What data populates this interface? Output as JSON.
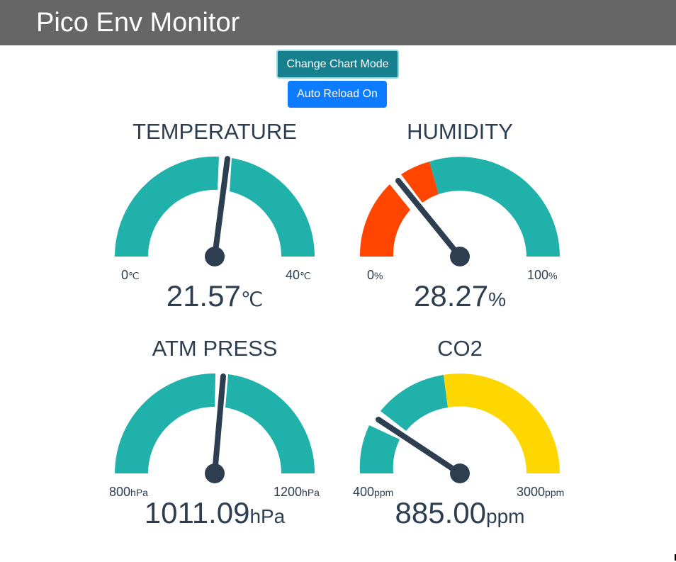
{
  "header": {
    "title": "Pico Env Monitor"
  },
  "buttons": {
    "chart_mode_label": "Change Chart Mode",
    "auto_reload_label": "Auto Reload On"
  },
  "colors": {
    "header_bg": "#666666",
    "teal": "#20b2aa",
    "red": "#ff4500",
    "yellow": "#ffd700",
    "needle": "#2c3e50",
    "mode_button": "#17808f",
    "reload_button": "#0d7bff"
  },
  "gauges": [
    {
      "title": "TEMPERATURE",
      "value": "21.57",
      "unit": "℃",
      "min": "0",
      "min_unit": "℃",
      "max": "40",
      "max_unit": "℃",
      "reading": 21.57,
      "range": [
        0,
        40
      ]
    },
    {
      "title": "HUMIDITY",
      "value": "28.27",
      "unit": "%",
      "min": "0",
      "min_unit": "%",
      "max": "100",
      "max_unit": "%",
      "reading": 28.27,
      "range": [
        0,
        100
      ]
    },
    {
      "title": "ATM PRESS",
      "value": "1011.09",
      "unit": "hPa",
      "min": "800",
      "min_unit": "hPa",
      "max": "1200",
      "max_unit": "hPa",
      "reading": 1011.09,
      "range": [
        800,
        1200
      ]
    },
    {
      "title": "CO2",
      "value": "885.00",
      "unit": "ppm",
      "min": "400",
      "min_unit": "ppm",
      "max": "3000",
      "max_unit": "ppm",
      "reading": 885.0,
      "range": [
        400,
        3000
      ]
    }
  ]
}
